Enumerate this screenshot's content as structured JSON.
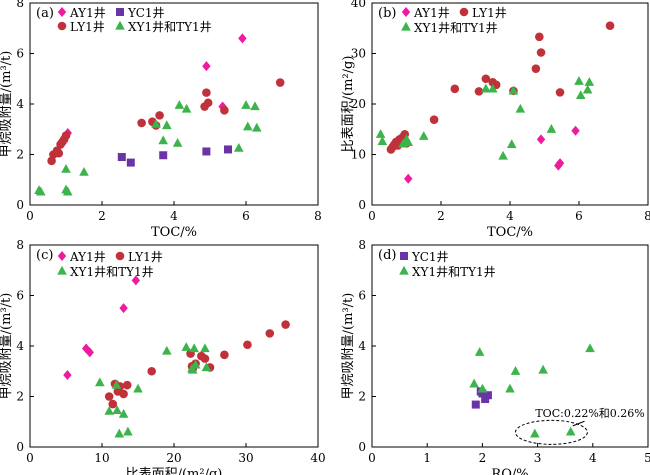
{
  "colors": {
    "AY1": "#ee1a9f",
    "YC1": "#6a34a6",
    "LY1": "#c0313a",
    "XYTY": "#3cb44b"
  },
  "chart_data": [
    {
      "type": "scatter",
      "panel": "(a)",
      "xlabel": "TOC/%",
      "ylabel": "甲烷吸附量/(m³/t)",
      "xlim": [
        0,
        8
      ],
      "ylim": [
        0,
        8
      ],
      "xticks": [
        0,
        2,
        4,
        6,
        8
      ],
      "yticks": [
        0,
        2,
        4,
        6,
        8
      ],
      "legend": [
        {
          "key": "AY1",
          "label": "AY1井",
          "marker": "diamond"
        },
        {
          "key": "YC1",
          "label": "YC1井",
          "marker": "square"
        },
        {
          "key": "LY1",
          "label": "LY1井",
          "marker": "circle"
        },
        {
          "key": "XYTY",
          "label": "XY1井和TY1井",
          "marker": "triangle"
        }
      ],
      "series": [
        {
          "key": "AY1",
          "name": "AY1井",
          "marker": "diamond",
          "points": [
            [
              1.05,
              2.85
            ],
            [
              4.9,
              5.5
            ],
            [
              5.9,
              6.6
            ],
            [
              5.35,
              3.9
            ]
          ]
        },
        {
          "key": "YC1",
          "name": "YC1井",
          "marker": "square",
          "points": [
            [
              2.55,
              1.9
            ],
            [
              2.8,
              1.68
            ],
            [
              3.7,
              1.97
            ],
            [
              4.9,
              2.12
            ],
            [
              5.5,
              2.2
            ]
          ]
        },
        {
          "key": "LY1",
          "name": "LY1井",
          "marker": "circle",
          "points": [
            [
              0.6,
              1.75
            ],
            [
              0.65,
              2.0
            ],
            [
              0.75,
              2.15
            ],
            [
              0.8,
              2.05
            ],
            [
              0.85,
              2.4
            ],
            [
              0.9,
              2.5
            ],
            [
              0.95,
              2.6
            ],
            [
              1.0,
              2.75
            ],
            [
              3.1,
              3.25
            ],
            [
              3.4,
              3.3
            ],
            [
              3.6,
              3.55
            ],
            [
              3.5,
              3.15
            ],
            [
              4.85,
              3.9
            ],
            [
              4.9,
              4.45
            ],
            [
              4.95,
              4.05
            ],
            [
              5.4,
              3.75
            ],
            [
              6.95,
              4.85
            ]
          ]
        },
        {
          "key": "XYTY",
          "name": "XY1井和TY1井",
          "marker": "triangle",
          "points": [
            [
              0.25,
              0.58
            ],
            [
              0.3,
              0.52
            ],
            [
              1.0,
              1.42
            ],
            [
              1.0,
              0.6
            ],
            [
              1.05,
              0.52
            ],
            [
              1.5,
              1.3
            ],
            [
              3.5,
              3.2
            ],
            [
              3.7,
              2.55
            ],
            [
              3.8,
              3.15
            ],
            [
              4.1,
              2.45
            ],
            [
              4.15,
              3.95
            ],
            [
              4.35,
              3.8
            ],
            [
              5.8,
              2.25
            ],
            [
              6.0,
              3.95
            ],
            [
              6.05,
              3.1
            ],
            [
              6.25,
              3.9
            ],
            [
              6.3,
              3.05
            ]
          ]
        }
      ]
    },
    {
      "type": "scatter",
      "panel": "(b)",
      "xlabel": "TOC/%",
      "ylabel": "比表面积/(m²/g)",
      "xlim": [
        0,
        8
      ],
      "ylim": [
        0,
        40
      ],
      "xticks": [
        0,
        2,
        4,
        6,
        8
      ],
      "yticks": [
        0,
        10,
        20,
        30,
        40
      ],
      "legend": [
        {
          "key": "AY1",
          "label": "AY1井",
          "marker": "diamond"
        },
        {
          "key": "LY1",
          "label": "LY1井",
          "marker": "circle"
        },
        {
          "key": "XYTY",
          "label": "XY1井和TY1井",
          "marker": "triangle"
        }
      ],
      "series": [
        {
          "key": "AY1",
          "name": "AY1井",
          "marker": "diamond",
          "points": [
            [
              1.05,
              5.2
            ],
            [
              4.9,
              13.0
            ],
            [
              5.45,
              8.3
            ],
            [
              5.4,
              7.8
            ],
            [
              5.9,
              14.7
            ]
          ]
        },
        {
          "key": "LY1",
          "name": "LY1井",
          "marker": "circle",
          "points": [
            [
              0.55,
              11.0
            ],
            [
              0.6,
              11.5
            ],
            [
              0.65,
              12.0
            ],
            [
              0.7,
              12.5
            ],
            [
              0.75,
              11.8
            ],
            [
              0.8,
              13.0
            ],
            [
              0.85,
              12.7
            ],
            [
              0.9,
              13.5
            ],
            [
              0.95,
              14.0
            ],
            [
              1.0,
              12.2
            ],
            [
              1.8,
              16.9
            ],
            [
              2.4,
              23.0
            ],
            [
              3.1,
              22.5
            ],
            [
              3.3,
              25.0
            ],
            [
              3.5,
              24.3
            ],
            [
              3.6,
              23.8
            ],
            [
              4.1,
              22.6
            ],
            [
              4.75,
              27.0
            ],
            [
              4.85,
              33.3
            ],
            [
              4.9,
              30.2
            ],
            [
              5.45,
              22.3
            ],
            [
              6.9,
              35.5
            ]
          ]
        },
        {
          "key": "XYTY",
          "name": "XY1井和TY1井",
          "marker": "triangle",
          "points": [
            [
              0.25,
              14.0
            ],
            [
              0.3,
              12.6
            ],
            [
              0.9,
              12.1
            ],
            [
              1.0,
              13.0
            ],
            [
              1.05,
              12.4
            ],
            [
              1.5,
              13.6
            ],
            [
              3.3,
              23.0
            ],
            [
              3.5,
              23.0
            ],
            [
              3.8,
              9.7
            ],
            [
              4.05,
              12.0
            ],
            [
              4.1,
              22.6
            ],
            [
              4.3,
              19.0
            ],
            [
              5.2,
              15.0
            ],
            [
              6.0,
              24.5
            ],
            [
              6.05,
              21.7
            ],
            [
              6.25,
              22.8
            ],
            [
              6.3,
              24.3
            ]
          ]
        }
      ]
    },
    {
      "type": "scatter",
      "panel": "(c)",
      "xlabel": "比表面积/(m²/g)",
      "ylabel": "甲烷吸附量/(m³/t)",
      "xlim": [
        0,
        40
      ],
      "ylim": [
        0,
        8
      ],
      "xticks": [
        0,
        10,
        20,
        30,
        40
      ],
      "yticks": [
        0,
        2,
        4,
        6,
        8
      ],
      "legend": [
        {
          "key": "AY1",
          "label": "AY1井",
          "marker": "diamond"
        },
        {
          "key": "LY1",
          "label": "LY1井",
          "marker": "circle"
        },
        {
          "key": "XYTY",
          "label": "XY1井和TY1井",
          "marker": "triangle"
        }
      ],
      "series": [
        {
          "key": "AY1",
          "name": "AY1井",
          "marker": "diamond",
          "points": [
            [
              5.2,
              2.85
            ],
            [
              7.8,
              3.9
            ],
            [
              8.3,
              3.75
            ],
            [
              13.0,
              5.5
            ],
            [
              14.7,
              6.6
            ]
          ]
        },
        {
          "key": "LY1",
          "name": "LY1井",
          "marker": "circle",
          "points": [
            [
              11.0,
              2.0
            ],
            [
              11.5,
              1.7
            ],
            [
              11.8,
              2.5
            ],
            [
              12.2,
              2.2
            ],
            [
              12.5,
              2.4
            ],
            [
              13.0,
              2.1
            ],
            [
              13.5,
              2.45
            ],
            [
              16.9,
              3.0
            ],
            [
              22.3,
              3.7
            ],
            [
              22.5,
              3.2
            ],
            [
              22.6,
              3.1
            ],
            [
              23.0,
              3.3
            ],
            [
              23.8,
              3.6
            ],
            [
              24.3,
              3.5
            ],
            [
              25.0,
              3.15
            ],
            [
              27.0,
              3.65
            ],
            [
              30.2,
              4.05
            ],
            [
              33.3,
              4.5
            ],
            [
              35.5,
              4.85
            ]
          ]
        },
        {
          "key": "XYTY",
          "name": "XY1井和TY1井",
          "marker": "triangle",
          "points": [
            [
              9.7,
              2.55
            ],
            [
              11.0,
              1.42
            ],
            [
              12.0,
              2.45
            ],
            [
              12.1,
              1.45
            ],
            [
              12.4,
              0.52
            ],
            [
              13.0,
              1.3
            ],
            [
              13.6,
              0.6
            ],
            [
              15.0,
              2.3
            ],
            [
              19.0,
              3.8
            ],
            [
              21.7,
              3.95
            ],
            [
              22.5,
              3.1
            ],
            [
              22.6,
              3.05
            ],
            [
              22.8,
              3.9
            ],
            [
              23.0,
              3.25
            ],
            [
              24.3,
              3.9
            ],
            [
              24.5,
              3.15
            ]
          ]
        }
      ]
    },
    {
      "type": "scatter",
      "panel": "(d)",
      "xlabel": "RO/%",
      "ylabel": "甲烷吸附量/(m³/t)",
      "xlim": [
        0,
        5
      ],
      "ylim": [
        0,
        8
      ],
      "xticks": [
        0,
        1,
        2,
        3,
        4,
        5
      ],
      "yticks": [
        0,
        2,
        4,
        6,
        8
      ],
      "legend": [
        {
          "key": "YC1",
          "label": "YC1井",
          "marker": "square"
        },
        {
          "key": "XYTY",
          "label": "XY1井和TY1井",
          "marker": "triangle"
        }
      ],
      "series": [
        {
          "key": "YC1",
          "name": "YC1井",
          "marker": "square",
          "points": [
            [
              1.88,
              1.68
            ],
            [
              1.97,
              2.2
            ],
            [
              2.0,
              2.12
            ],
            [
              2.05,
              1.9
            ],
            [
              2.1,
              2.05
            ]
          ]
        },
        {
          "key": "XYTY",
          "name": "XY1井和TY1井",
          "marker": "triangle",
          "points": [
            [
              1.85,
              2.5
            ],
            [
              1.95,
              3.75
            ],
            [
              2.0,
              2.3
            ],
            [
              2.5,
              2.3
            ],
            [
              2.6,
              3.0
            ],
            [
              2.95,
              0.52
            ],
            [
              3.1,
              3.05
            ],
            [
              3.6,
              0.6
            ],
            [
              3.95,
              3.9
            ]
          ]
        }
      ],
      "annotation": {
        "text": "TOC:0.22%和0.26%",
        "x": 3.38,
        "y": 0.78
      }
    }
  ]
}
